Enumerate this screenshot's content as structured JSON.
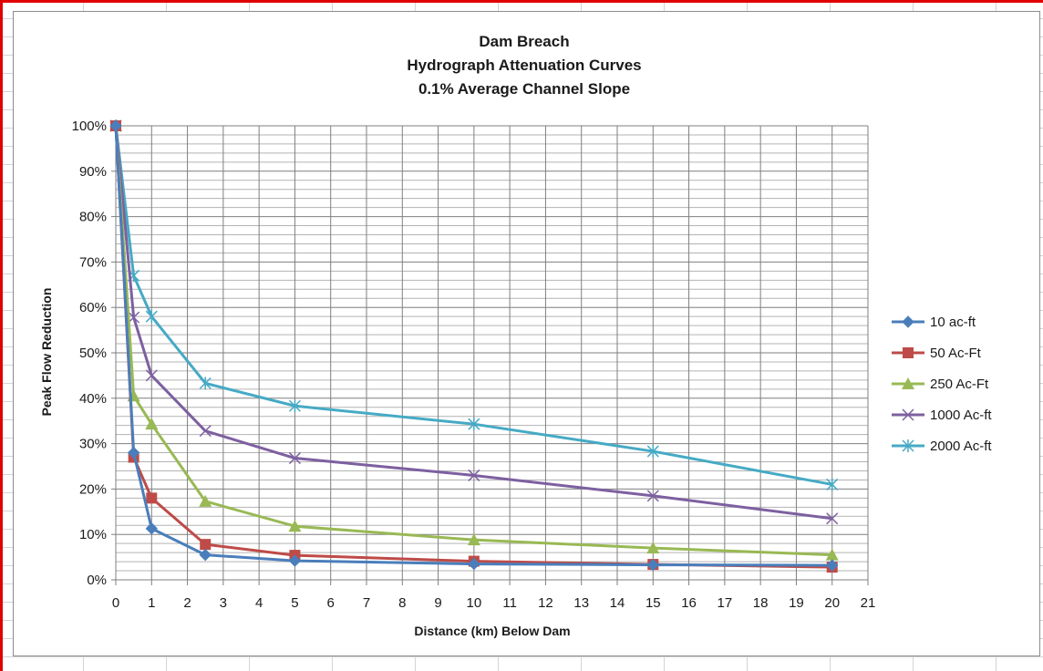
{
  "chart_data": {
    "type": "line",
    "title_lines": [
      "Dam Breach",
      "Hydrograph Attenuation Curves",
      "0.1% Average Channel Slope"
    ],
    "xlabel": "Distance (km) Below Dam",
    "ylabel": "Peak Flow Reduction",
    "xlim": [
      0,
      21
    ],
    "ylim": [
      0,
      1
    ],
    "x_ticks": [
      "0",
      "1",
      "2",
      "3",
      "4",
      "5",
      "6",
      "7",
      "8",
      "9",
      "10",
      "11",
      "12",
      "13",
      "14",
      "15",
      "16",
      "17",
      "18",
      "19",
      "20",
      "21"
    ],
    "y_ticks": [
      "0%",
      "10%",
      "20%",
      "30%",
      "40%",
      "50%",
      "60%",
      "70%",
      "80%",
      "90%",
      "100%"
    ],
    "grid": true,
    "legend_position": "right",
    "series": [
      {
        "name": "10 ac-ft",
        "color": "#4a7ebb",
        "marker": "diamond",
        "x": [
          0,
          0.5,
          1,
          2.5,
          5,
          10,
          15,
          20
        ],
        "y": [
          1.0,
          0.28,
          0.113,
          0.055,
          0.042,
          0.035,
          0.033,
          0.032
        ]
      },
      {
        "name": "50 Ac-Ft",
        "color": "#be4b48",
        "marker": "square",
        "x": [
          0,
          0.5,
          1,
          2.5,
          5,
          10,
          15,
          20
        ],
        "y": [
          1.0,
          0.27,
          0.18,
          0.078,
          0.054,
          0.041,
          0.034,
          0.028
        ]
      },
      {
        "name": "250 Ac-Ft",
        "color": "#98b954",
        "marker": "triangle",
        "x": [
          0,
          0.5,
          1,
          2.5,
          5,
          10,
          15,
          20
        ],
        "y": [
          1.0,
          0.405,
          0.343,
          0.173,
          0.118,
          0.088,
          0.07,
          0.055
        ]
      },
      {
        "name": "1000 Ac-ft",
        "color": "#7d60a0",
        "marker": "x",
        "x": [
          0,
          0.5,
          1,
          2.5,
          5,
          10,
          15,
          20
        ],
        "y": [
          1.0,
          0.578,
          0.45,
          0.328,
          0.268,
          0.23,
          0.185,
          0.135
        ]
      },
      {
        "name": "2000 Ac-ft",
        "color": "#46aac5",
        "marker": "star",
        "x": [
          0,
          0.5,
          1,
          2.5,
          5,
          10,
          15,
          20
        ],
        "y": [
          1.0,
          0.67,
          0.58,
          0.433,
          0.383,
          0.343,
          0.283,
          0.21
        ]
      }
    ]
  }
}
